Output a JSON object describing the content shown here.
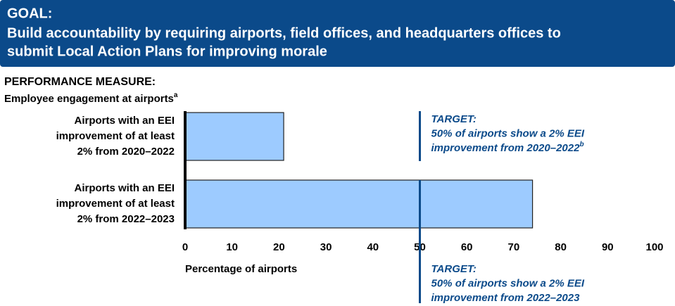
{
  "goal_label": "GOAL:",
  "goal_text": [
    "Build accountability by requiring airports, field offices, and headquarters offices to",
    "submit Local Action Plans for improving morale"
  ],
  "chart_data": {
    "type": "barh",
    "title": "PERFORMANCE MEASURE:",
    "subtitle": "Employee engagement at airports",
    "subtitle_note": "a",
    "categories": [
      [
        "Airports with an EEI",
        "improvement of at least",
        "2% from 2020–2022"
      ],
      [
        "Airports with an EEI",
        "improvement of at least",
        "2% from 2022–2023"
      ]
    ],
    "values": [
      21,
      74
    ],
    "color": "#9dcbff",
    "xlim": [
      0,
      100
    ],
    "xticks": [
      0,
      10,
      20,
      30,
      40,
      50,
      60,
      70,
      80,
      90,
      100
    ],
    "xlabel": "Percentage of airports",
    "targets": [
      {
        "value": 50,
        "label": "TARGET:",
        "text": [
          "50% of airports show a 2% EEI",
          "improvement from 2020–2022"
        ],
        "note": "b"
      },
      {
        "value": 50,
        "label": "TARGET:",
        "text": [
          "50% of airports show a 2% EEI",
          "improvement from 2022–2023"
        ]
      }
    ]
  }
}
